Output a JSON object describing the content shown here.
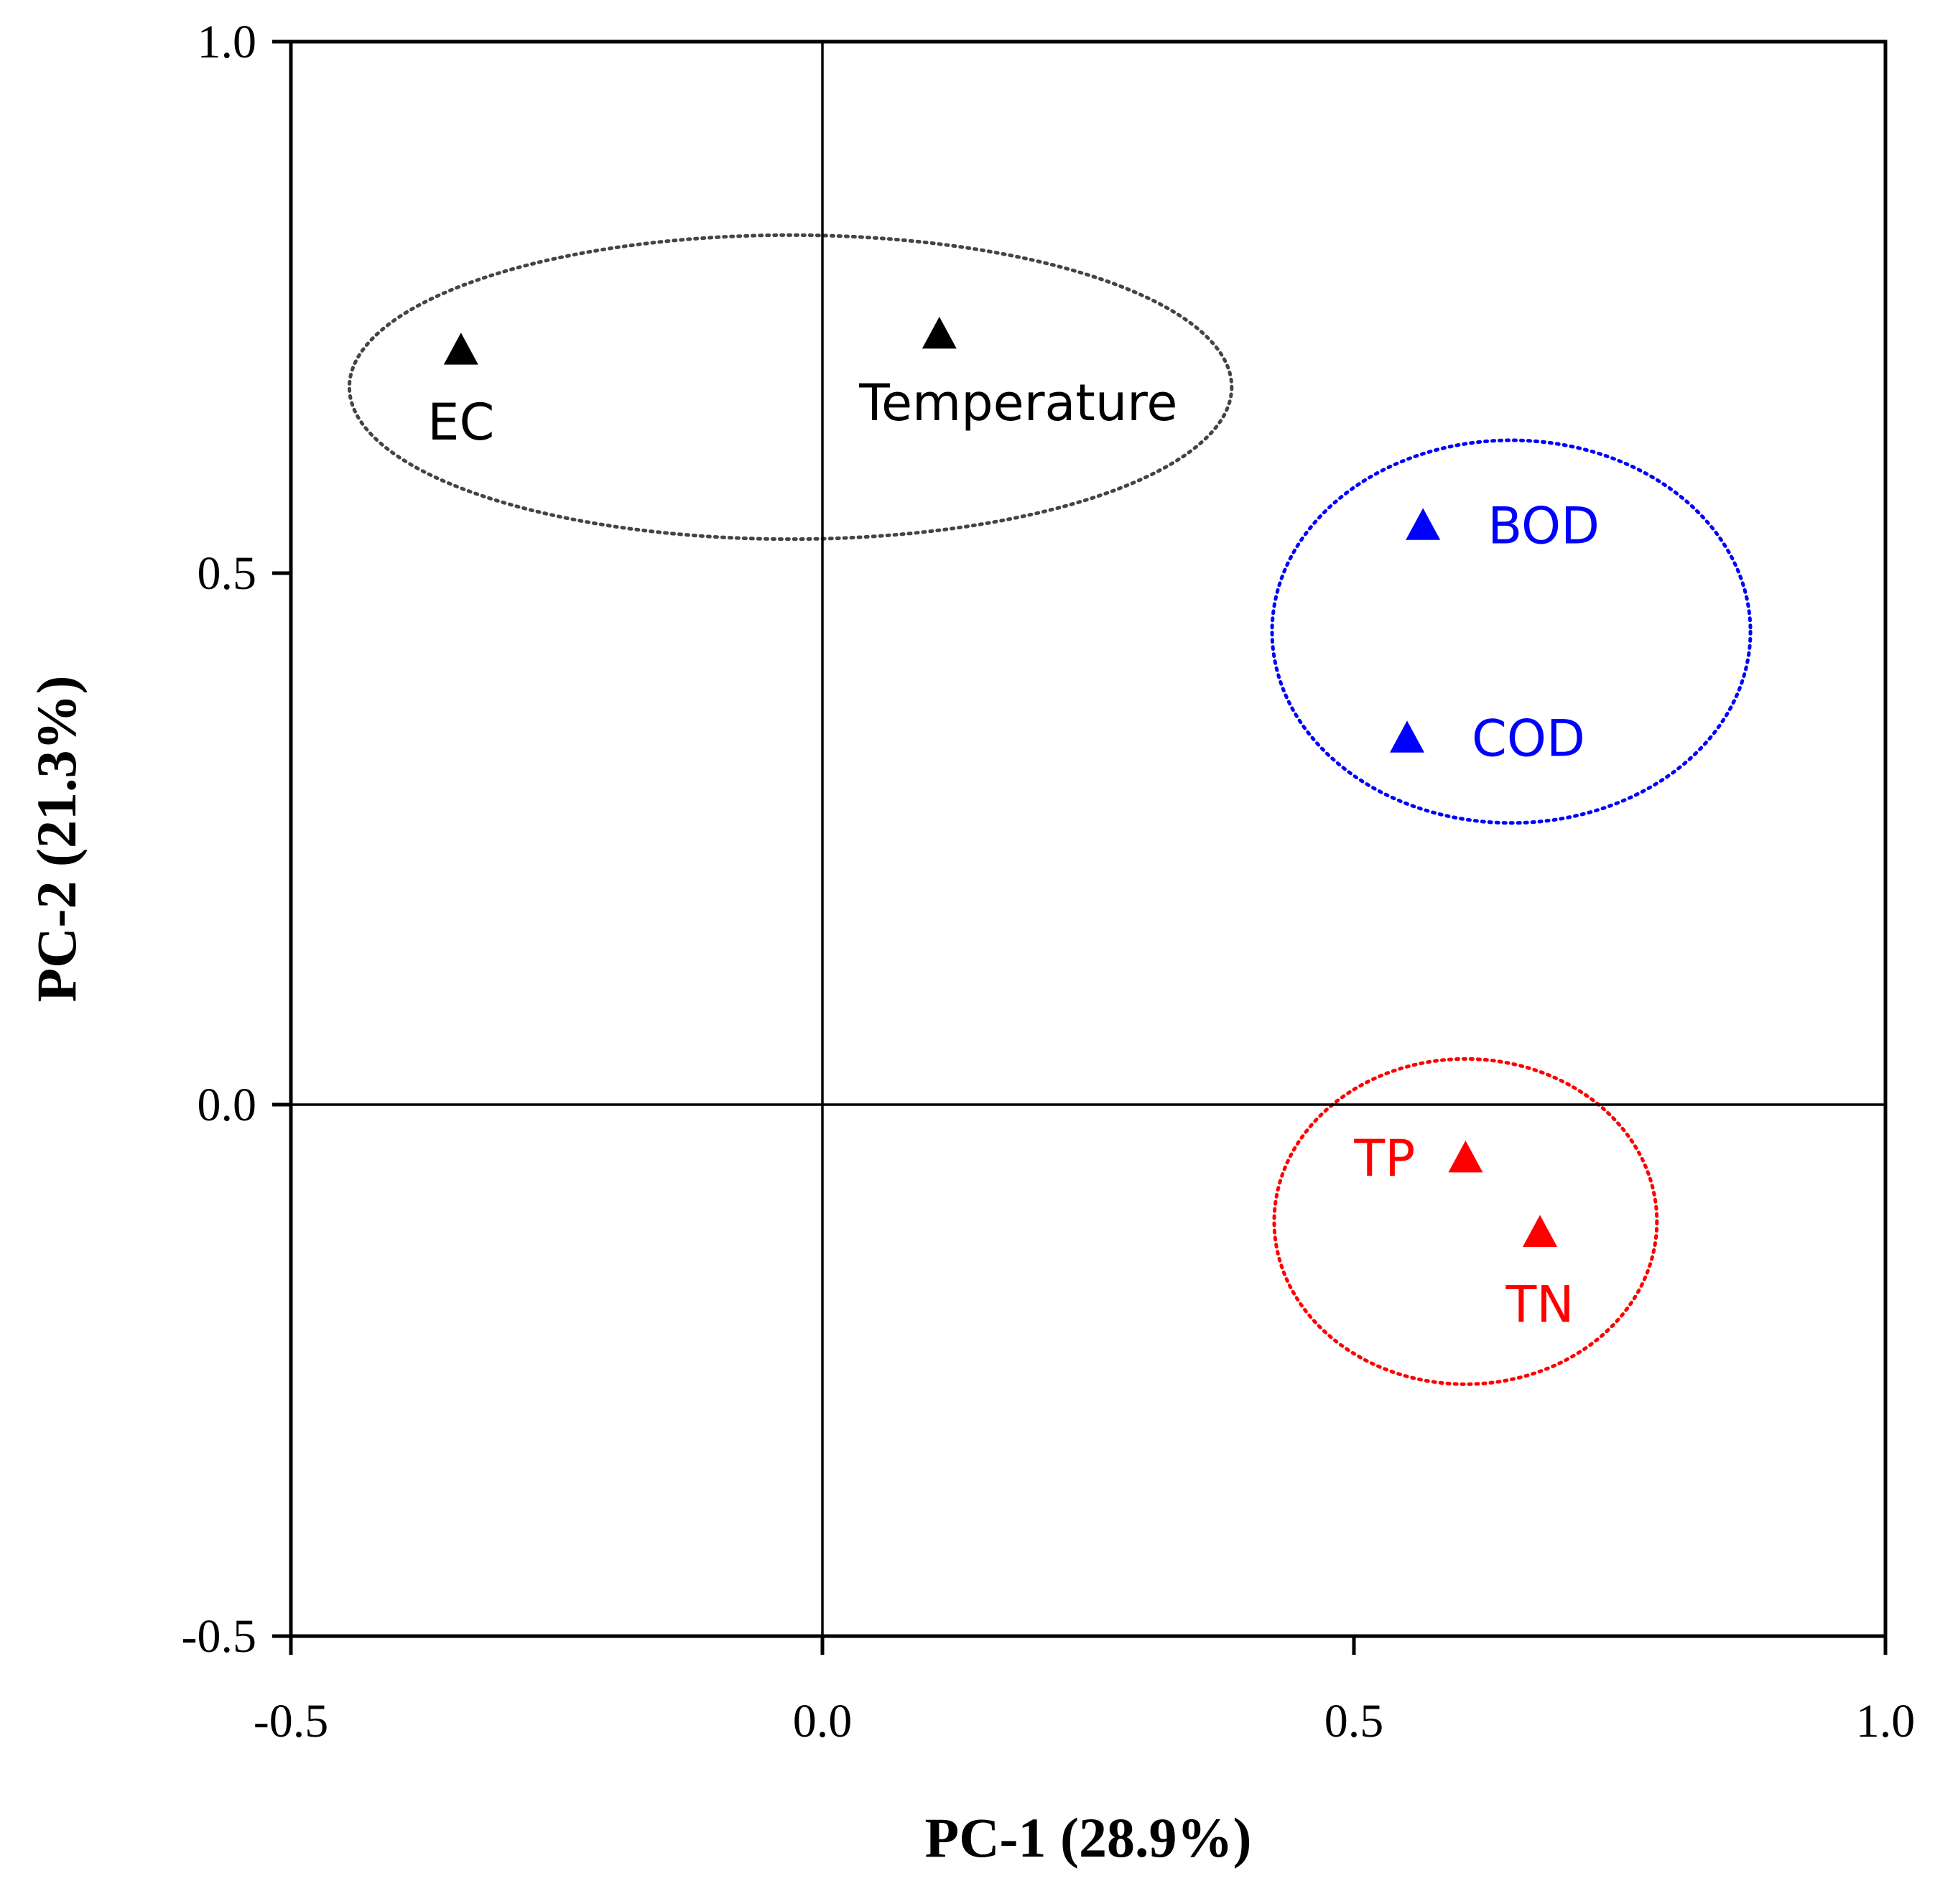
{
  "chart_data": {
    "type": "scatter",
    "title": "",
    "xlabel": "PC-1 (28.9%)",
    "ylabel": "PC-2 (21.3%)",
    "xlim": [
      -0.5,
      1.0
    ],
    "ylim": [
      -0.5,
      1.0
    ],
    "x_ticks": [
      "-0.5",
      "0.0",
      "0.5",
      "1.0"
    ],
    "y_ticks": [
      "1.0",
      "0.5",
      "0.0",
      "-0.5"
    ],
    "x_tick_values": [
      -0.5,
      0.0,
      0.5,
      1.0
    ],
    "y_tick_values": [
      1.0,
      0.5,
      0.0,
      -0.5
    ],
    "zero_lines": true,
    "marker": "triangle",
    "points": [
      {
        "label": "EC",
        "x": -0.34,
        "y": 0.71,
        "color": "#000000",
        "label_pos": "below"
      },
      {
        "label": "Temperature",
        "x": 0.11,
        "y": 0.725,
        "color": "#000000",
        "label_pos": "below"
      },
      {
        "label": "BOD",
        "x": 0.565,
        "y": 0.545,
        "color": "#0000ff",
        "label_pos": "right"
      },
      {
        "label": "COD",
        "x": 0.55,
        "y": 0.345,
        "color": "#0000ff",
        "label_pos": "right"
      },
      {
        "label": "TP",
        "x": 0.605,
        "y": -0.05,
        "color": "#ff0000",
        "label_pos": "left"
      },
      {
        "label": "TN",
        "x": 0.675,
        "y": -0.12,
        "color": "#ff0000",
        "label_pos": "below"
      }
    ],
    "groups": [
      {
        "name": "black-group",
        "members": [
          "EC",
          "Temperature"
        ],
        "color": "#444444",
        "cx": -0.03,
        "cy": 0.675,
        "rx": 0.415,
        "ry": 0.143
      },
      {
        "name": "blue-group",
        "members": [
          "BOD",
          "COD"
        ],
        "color": "#0000ff",
        "cx": 0.648,
        "cy": 0.445,
        "rx": 0.225,
        "ry": 0.18
      },
      {
        "name": "red-group",
        "members": [
          "TP",
          "TN"
        ],
        "color": "#ff0000",
        "cx": 0.605,
        "cy": -0.11,
        "rx": 0.18,
        "ry": 0.153
      }
    ]
  }
}
